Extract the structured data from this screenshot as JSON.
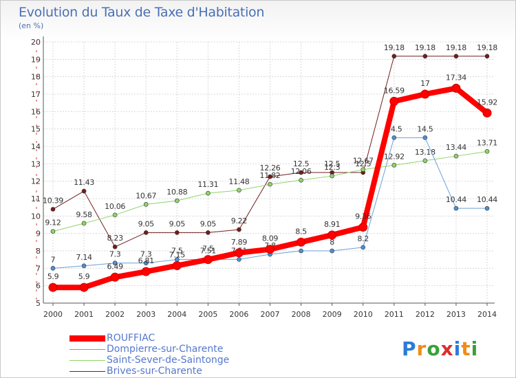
{
  "title": "Evolution du Taux de Taxe d'Habitation",
  "unit": "(en %)",
  "logo": {
    "text": "Proxiti",
    "letters": [
      "P",
      "r",
      "o",
      "x",
      "i",
      "t",
      "i"
    ],
    "colors": [
      "#2c7bd6",
      "#f08c1a",
      "#3aa03a",
      "#d9302c",
      "#2c7bd6",
      "#f08c1a",
      "#3aa03a"
    ]
  },
  "chart_data": {
    "type": "line",
    "title": "Evolution du Taux de Taxe d'Habitation",
    "ylabel": "(en %)",
    "xlabel": "",
    "x": [
      "2000",
      "2001",
      "2002",
      "2003",
      "2004",
      "2005",
      "2006",
      "2007",
      "2008",
      "2009",
      "2010",
      "2011",
      "2012",
      "2013",
      "2014"
    ],
    "ylim": [
      5,
      20
    ],
    "yticks": [
      "5",
      "6",
      "7",
      "8",
      "9",
      "10",
      "11",
      "12",
      "13",
      "14",
      "15",
      "16",
      "17",
      "18",
      "19",
      "20"
    ],
    "grid": true,
    "legend_position": "bottom-left",
    "series": [
      {
        "name": "Brives-sur-Charente",
        "color": "#6e1f1f",
        "marker": "#7a1a1a",
        "width": 1,
        "values": [
          10.39,
          11.43,
          8.23,
          9.05,
          9.05,
          9.05,
          9.22,
          12.26,
          12.5,
          12.5,
          12.5,
          19.18,
          19.18,
          19.18,
          19.18
        ],
        "labels": [
          "10.39",
          "11.43",
          "8.23",
          "9.05",
          "9.05",
          "9.05",
          "9.22",
          "12.26",
          "12.5",
          "12.5",
          "12.5",
          "19.18",
          "19.18",
          "19.18",
          "19.18"
        ]
      },
      {
        "name": "Saint-Sever-de-Saintonge",
        "color": "#8fd46a",
        "marker": "#8fd46a",
        "width": 1,
        "values": [
          9.12,
          9.58,
          10.06,
          10.67,
          10.88,
          11.31,
          11.48,
          11.82,
          12.06,
          12.3,
          12.67,
          12.92,
          13.18,
          13.44,
          13.71
        ],
        "labels": [
          "9.12",
          "9.58",
          "10.06",
          "10.67",
          "10.88",
          "11.31",
          "11.48",
          "11.82",
          "12.06",
          "12.3",
          "12.67",
          "12.92",
          "13.18",
          "13.44",
          "13.71"
        ]
      },
      {
        "name": "Dompierre-sur-Charente",
        "color": "#6aa0d8",
        "marker": "#4f8fd2",
        "width": 1,
        "values": [
          7,
          7.14,
          7.3,
          7.3,
          7.5,
          7.51,
          7.51,
          7.8,
          8,
          8,
          8.2,
          14.5,
          14.5,
          10.44,
          10.44
        ],
        "labels": [
          "7",
          "7.14",
          "7.3",
          "7.3",
          "7.5",
          "7.51",
          "7.51",
          "7.8",
          "8",
          "8",
          "8.2",
          "14.5",
          "14.5",
          "10.44",
          "10.44"
        ]
      },
      {
        "name": "ROUFFIAC",
        "color": "#ff0000",
        "marker": "#ff0000",
        "width": 8,
        "values": [
          5.9,
          5.9,
          6.49,
          6.81,
          7.15,
          7.5,
          7.89,
          8.09,
          8.5,
          8.91,
          9.36,
          16.59,
          17,
          17.34,
          15.92
        ],
        "labels": [
          "5.9",
          "5.9",
          "6.49",
          "6.81",
          "7.15",
          "7.5",
          "7.89",
          "8.09",
          "8.5",
          "8.91",
          "9.36",
          "16.59",
          "17",
          "17.34",
          "15.92"
        ]
      }
    ],
    "legend_order": [
      "ROUFFIAC",
      "Dompierre-sur-Charente",
      "Saint-Sever-de-Saintonge",
      "Brives-sur-Charente"
    ]
  }
}
